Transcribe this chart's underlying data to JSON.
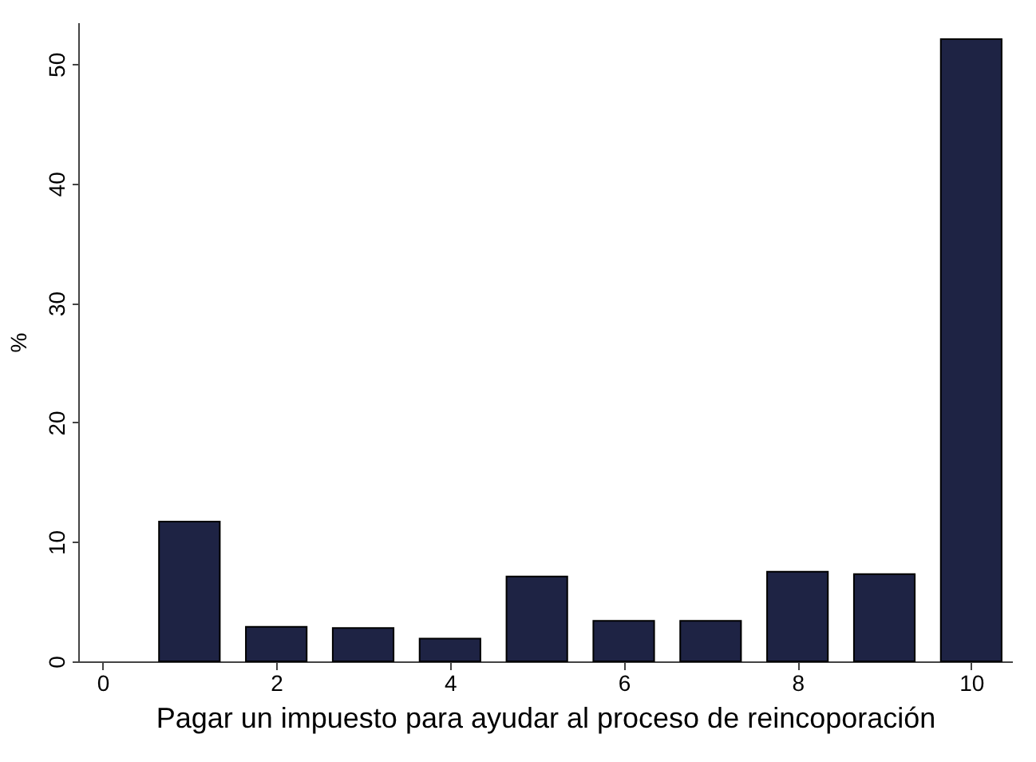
{
  "chart_data": {
    "type": "bar",
    "xlabel": "Pagar un impuesto para ayudar al proceso de reincoporación",
    "ylabel": "%",
    "x": [
      1,
      2,
      3,
      4,
      5,
      6,
      7,
      8,
      9,
      10
    ],
    "values": [
      11.7,
      2.9,
      2.8,
      1.9,
      7.1,
      3.4,
      3.4,
      7.5,
      7.3,
      52.1
    ],
    "color": "#1e2344",
    "xlim": [
      -0.28,
      10.47
    ],
    "xticks": [
      0,
      2,
      4,
      6,
      8,
      10
    ],
    "ylim": [
      0,
      53.5
    ],
    "yticks": [
      0,
      10,
      20,
      30,
      40,
      50
    ],
    "grid": false
  }
}
